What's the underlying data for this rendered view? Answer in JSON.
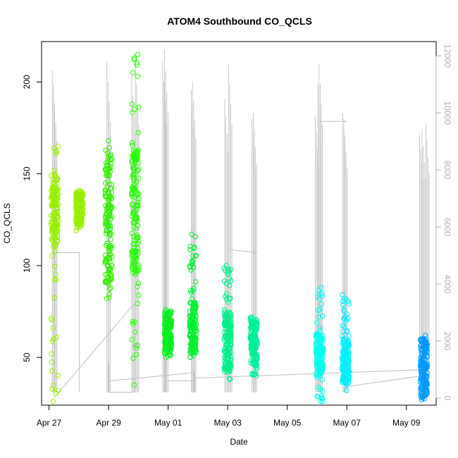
{
  "chart_data": {
    "type": "scatter",
    "title": "ATOM4 Southbound CO_QCLS",
    "xlabel": "Date",
    "ylabel": "CO_QCLS",
    "x_tick_labels": [
      "Apr 27",
      "Apr 29",
      "May 01",
      "May 03",
      "May 05",
      "May 07",
      "May 09"
    ],
    "y_tick_labels": [
      "50",
      "100",
      "150",
      "200"
    ],
    "y2_tick_labels": [
      "0",
      "2000",
      "4000",
      "6000",
      "8000",
      "10000",
      "12000"
    ],
    "xlim": [
      "2016-04-26 18:00",
      "2016-05-10 00:00"
    ],
    "ylim": [
      24,
      222
    ],
    "y2lim": [
      -250,
      12500
    ],
    "grid": false,
    "legend": "none",
    "colors": {
      "secondary_series": "#bebebe",
      "axis": "#000000",
      "secondary_axis": "#b0b0b0"
    },
    "series": [
      {
        "axis": "left",
        "style": "open-circles",
        "clusters": [
          {
            "date": "2016-04-27 04:30",
            "ymin": 26,
            "ymax": 165,
            "dense_min": 110,
            "dense_max": 150,
            "color": "#99ee00"
          },
          {
            "date": "2016-04-28 00:30",
            "ymin": 119,
            "ymax": 141,
            "dense_min": 122,
            "dense_max": 140,
            "color": "#99ee00"
          },
          {
            "date": "2016-04-29 00:00",
            "ymin": 82,
            "ymax": 168,
            "dense_min": 90,
            "dense_max": 160,
            "color": "#33ee00"
          },
          {
            "date": "2016-04-29 21:30",
            "ymin": 35,
            "ymax": 215,
            "dense_min": 95,
            "dense_max": 165,
            "color": "#22ff00"
          },
          {
            "date": "2016-05-01 00:00",
            "ymin": 50,
            "ymax": 76,
            "dense_min": 52,
            "dense_max": 74,
            "color": "#00ee22"
          },
          {
            "date": "2016-05-01 20:00",
            "ymin": 50,
            "ymax": 117,
            "dense_min": 52,
            "dense_max": 80,
            "color": "#00ee33"
          },
          {
            "date": "2016-05-03 00:00",
            "ymin": 38,
            "ymax": 100,
            "dense_min": 42,
            "dense_max": 75,
            "color": "#00ee88"
          },
          {
            "date": "2016-05-03 21:00",
            "ymin": 40,
            "ymax": 72,
            "dense_min": 45,
            "dense_max": 70,
            "color": "#00ee99"
          },
          {
            "date": "2016-05-06 02:00",
            "ymin": 26,
            "ymax": 88,
            "dense_min": 40,
            "dense_max": 63,
            "color": "#00ffee"
          },
          {
            "date": "2016-05-06 23:00",
            "ymin": 32,
            "ymax": 84,
            "dense_min": 35,
            "dense_max": 60,
            "color": "#00eeff"
          },
          {
            "date": "2016-05-09 14:00",
            "ymin": 27,
            "ymax": 62,
            "dense_min": 28,
            "dense_max": 60,
            "color": "#0099ff"
          }
        ]
      },
      {
        "axis": "right",
        "style": "line",
        "color": "#bebebe",
        "spikes": [
          {
            "date": "2016-04-27 04:00",
            "value": 11500
          },
          {
            "date": "2016-04-27 05:00",
            "value": 11000
          },
          {
            "date": "2016-04-29 00:00",
            "value": 11800
          },
          {
            "date": "2016-04-29 20:00",
            "value": 11300
          },
          {
            "date": "2016-04-29 23:00",
            "value": 11700
          },
          {
            "date": "2016-04-30 21:00",
            "value": 11800
          },
          {
            "date": "2016-04-30 22:30",
            "value": 12200
          },
          {
            "date": "2016-05-01 20:00",
            "value": 10800
          },
          {
            "date": "2016-05-01 21:00",
            "value": 11100
          },
          {
            "date": "2016-05-02 23:00",
            "value": 10500
          },
          {
            "date": "2016-05-03 02:00",
            "value": 11700
          },
          {
            "date": "2016-05-03 21:00",
            "value": 9800
          },
          {
            "date": "2016-05-03 22:00",
            "value": 10000
          },
          {
            "date": "2016-05-06 00:00",
            "value": 9900
          },
          {
            "date": "2016-05-06 02:00",
            "value": 11000
          },
          {
            "date": "2016-05-06 03:00",
            "value": 11700
          },
          {
            "date": "2016-05-06 22:00",
            "value": 10000
          },
          {
            "date": "2016-05-06 23:00",
            "value": 9800
          },
          {
            "date": "2016-05-09 12:00",
            "value": 9300
          },
          {
            "date": "2016-05-09 14:00",
            "value": 9400
          },
          {
            "date": "2016-05-09 17:00",
            "value": 9600
          }
        ],
        "connectors": [
          [
            [
              "2016-04-27 04:00",
              5100
            ],
            [
              "2016-04-28 00:30",
              5100
            ],
            [
              "2016-04-28 00:30",
              200
            ]
          ],
          [
            [
              "2016-04-27 04:00",
              0
            ],
            [
              "2016-04-29 20:30",
              3300
            ],
            [
              "2016-04-29 20:30",
              200
            ]
          ],
          [
            [
              "2016-04-29 00:00",
              200
            ],
            [
              "2016-04-29 20:00",
              200
            ]
          ],
          [
            [
              "2016-04-29 00:00",
              1200
            ],
            [
              "2016-04-29 00:00",
              200
            ]
          ],
          [
            [
              "2016-04-29 00:00",
              600
            ],
            [
              "2016-05-01 00:00",
              800
            ]
          ],
          [
            [
              "2016-05-01 00:00",
              800
            ],
            [
              "2016-05-01 21:00",
              900
            ],
            [
              "2016-05-01 21:00",
              200
            ]
          ],
          [
            [
              "2016-05-01 00:00",
              600
            ],
            [
              "2016-05-01 21:00",
              600
            ]
          ],
          [
            [
              "2016-05-01 21:00",
              700
            ],
            [
              "2016-05-09 17:00",
              1000
            ]
          ],
          [
            [
              "2016-05-03 02:00",
              5200
            ],
            [
              "2016-05-04 00:00",
              5100
            ]
          ],
          [
            [
              "2016-05-06 02:00",
              9700
            ],
            [
              "2016-05-07 00:00",
              9700
            ]
          ],
          [
            [
              "2016-05-07 00:00",
              400
            ],
            [
              "2016-05-09 16:00",
              800
            ]
          ]
        ]
      }
    ]
  }
}
